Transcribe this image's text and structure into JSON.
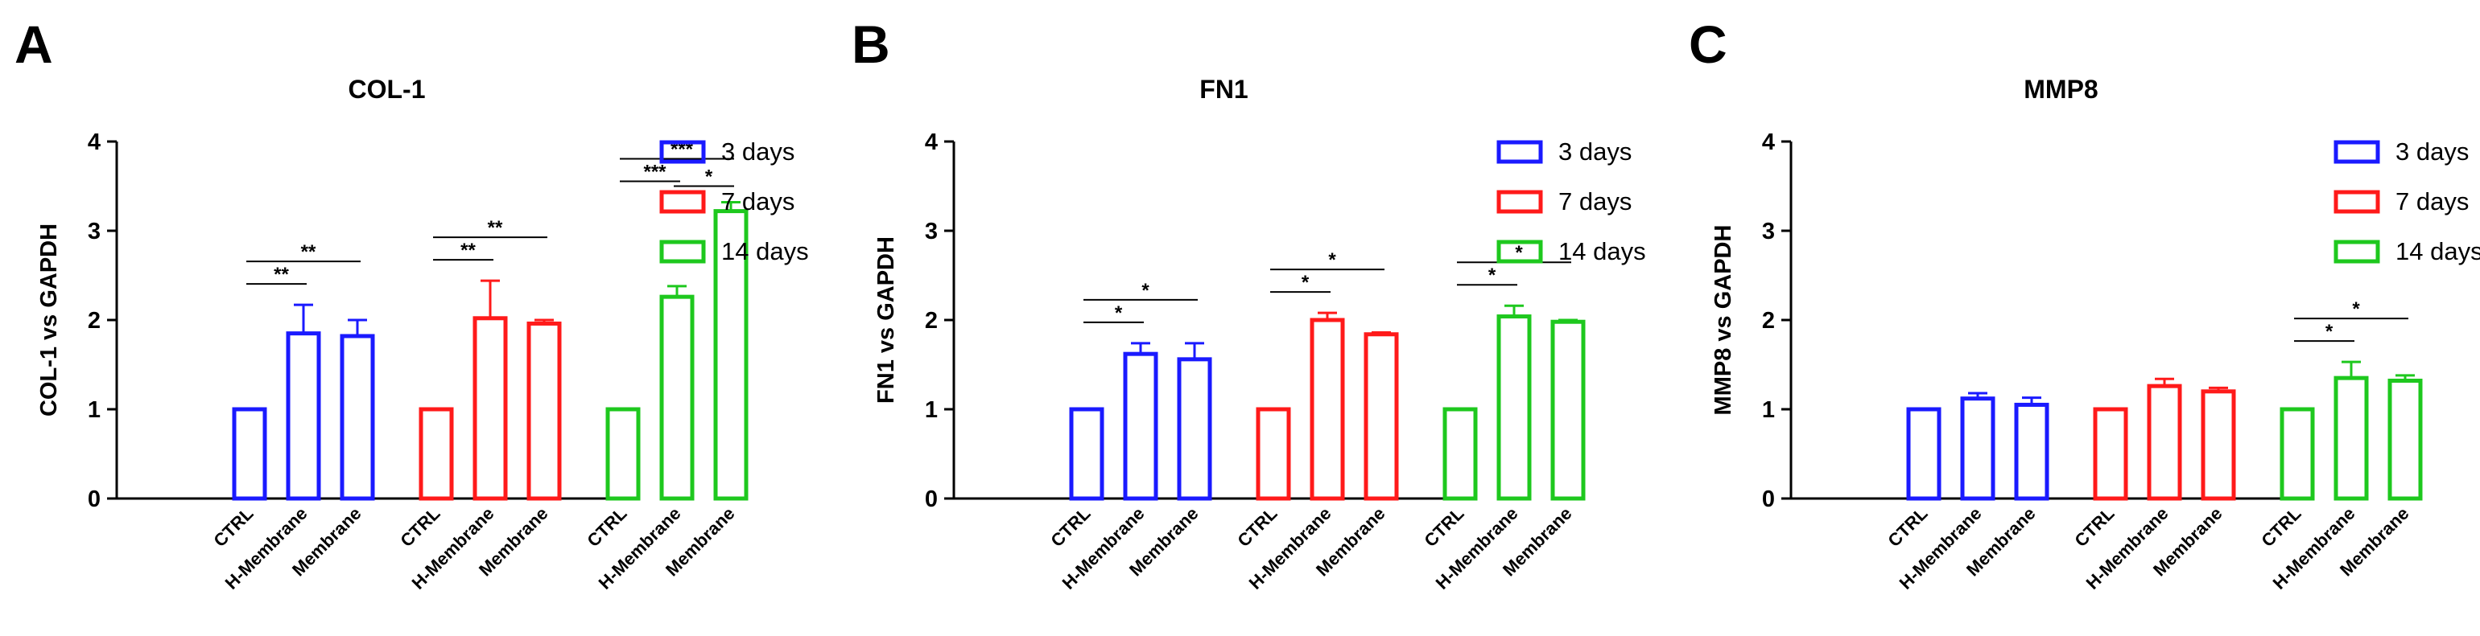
{
  "colors": {
    "3 days": "#1a1aff",
    "7 days": "#ff1a1a",
    "14 days": "#1ec81e",
    "axis": "#000000"
  },
  "chart_data": [
    {
      "panel_label": "A",
      "type": "bar",
      "title": "COL-1",
      "ylabel": "COL-1 vs GAPDH",
      "ylim": [
        0,
        4
      ],
      "yticks": [
        "0",
        "1",
        "2",
        "3",
        "4"
      ],
      "categories": [
        "CTRL",
        "H-Membrane",
        "Membrane"
      ],
      "legend": {
        "position": "right",
        "entries": [
          "3 days",
          "7 days",
          "14 days"
        ]
      },
      "series": [
        {
          "name": "3 days",
          "values": [
            1.0,
            1.85,
            1.82
          ],
          "errors": [
            0,
            0.32,
            0.18
          ],
          "significance": [
            {
              "from": 0,
              "to": 1,
              "label": "**"
            },
            {
              "from": 0,
              "to": 2,
              "label": "**"
            }
          ]
        },
        {
          "name": "7 days",
          "values": [
            1.0,
            2.02,
            1.96
          ],
          "errors": [
            0,
            0.42,
            0.04
          ],
          "significance": [
            {
              "from": 0,
              "to": 1,
              "label": "**"
            },
            {
              "from": 0,
              "to": 2,
              "label": "**"
            }
          ]
        },
        {
          "name": "14 days",
          "values": [
            1.0,
            2.26,
            3.22
          ],
          "errors": [
            0,
            0.12,
            0.1
          ],
          "significance": [
            {
              "from": 0,
              "to": 1,
              "label": "***"
            },
            {
              "from": 0,
              "to": 2,
              "label": "***"
            },
            {
              "from": 1,
              "to": 2,
              "label": "*"
            }
          ]
        }
      ]
    },
    {
      "panel_label": "B",
      "type": "bar",
      "title": "FN1",
      "ylabel": "FN1 vs GAPDH",
      "ylim": [
        0,
        4
      ],
      "yticks": [
        "0",
        "1",
        "2",
        "3",
        "4"
      ],
      "categories": [
        "CTRL",
        "H-Membrane",
        "Membrane"
      ],
      "legend": {
        "position": "right",
        "entries": [
          "3 days",
          "7 days",
          "14 days"
        ]
      },
      "series": [
        {
          "name": "3 days",
          "values": [
            1.0,
            1.62,
            1.56
          ],
          "errors": [
            0,
            0.12,
            0.18
          ],
          "significance": [
            {
              "from": 0,
              "to": 1,
              "label": "*"
            },
            {
              "from": 0,
              "to": 2,
              "label": "*"
            }
          ]
        },
        {
          "name": "7 days",
          "values": [
            1.0,
            2.0,
            1.84
          ],
          "errors": [
            0,
            0.08,
            0.02
          ],
          "significance": [
            {
              "from": 0,
              "to": 1,
              "label": "*"
            },
            {
              "from": 0,
              "to": 2,
              "label": "*"
            }
          ]
        },
        {
          "name": "14 days",
          "values": [
            1.0,
            2.04,
            1.98
          ],
          "errors": [
            0,
            0.12,
            0.02
          ],
          "significance": [
            {
              "from": 0,
              "to": 1,
              "label": "*"
            },
            {
              "from": 0,
              "to": 2,
              "label": "*"
            }
          ]
        }
      ]
    },
    {
      "panel_label": "C",
      "type": "bar",
      "title": "MMP8",
      "ylabel": "MMP8 vs GAPDH",
      "ylim": [
        0,
        4
      ],
      "yticks": [
        "0",
        "1",
        "2",
        "3",
        "4"
      ],
      "categories": [
        "CTRL",
        "H-Membrane",
        "Membrane"
      ],
      "legend": {
        "position": "right",
        "entries": [
          "3 days",
          "7 days",
          "14 days"
        ]
      },
      "series": [
        {
          "name": "3 days",
          "values": [
            1.0,
            1.12,
            1.05
          ],
          "errors": [
            0,
            0.06,
            0.08
          ],
          "significance": []
        },
        {
          "name": "7 days",
          "values": [
            1.0,
            1.26,
            1.2
          ],
          "errors": [
            0,
            0.08,
            0.04
          ],
          "significance": []
        },
        {
          "name": "14 days",
          "values": [
            1.0,
            1.35,
            1.32
          ],
          "errors": [
            0,
            0.18,
            0.06
          ],
          "significance": [
            {
              "from": 0,
              "to": 1,
              "label": "*"
            },
            {
              "from": 0,
              "to": 2,
              "label": "*"
            }
          ]
        }
      ]
    }
  ]
}
